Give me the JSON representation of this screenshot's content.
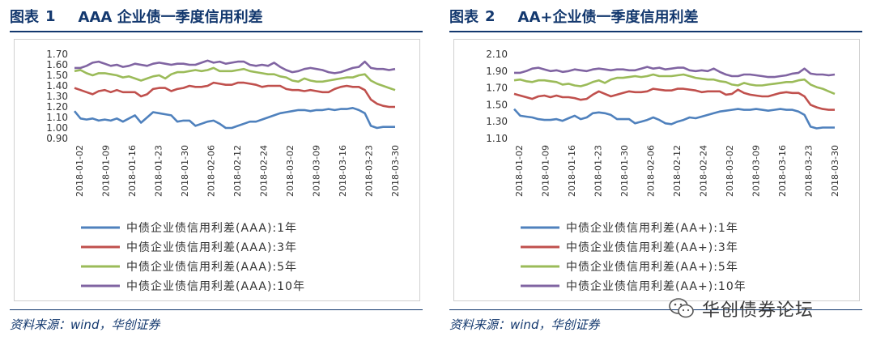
{
  "left": {
    "title_label": "图表",
    "title_num": "1",
    "title_text": "AAA 企业债一季度信用利差",
    "source": "资料来源：wind，华创证券",
    "chart_data": {
      "type": "line",
      "ylim": [
        0.9,
        1.7
      ],
      "yticks": [
        "1.70",
        "1.60",
        "1.50",
        "1.40",
        "1.30",
        "1.20",
        "1.10",
        "1.00",
        "0.90"
      ],
      "grid": "none",
      "legend_position": "bottom",
      "xticks": [
        "2018-01-02",
        "2018-01-09",
        "2018-01-16",
        "2018-01-23",
        "2018-01-30",
        "2018-02-06",
        "2018-02-12",
        "2018-02-24",
        "2018-03-02",
        "2018-03-09",
        "2018-03-16",
        "2018-03-23",
        "2018-03-30"
      ],
      "series": [
        {
          "name": "中债企业债信用利差(AAA):1年",
          "color": "#4f81bd",
          "values": [
            1.16,
            1.09,
            1.08,
            1.09,
            1.07,
            1.08,
            1.07,
            1.09,
            1.06,
            1.09,
            1.12,
            1.05,
            1.1,
            1.15,
            1.14,
            1.13,
            1.12,
            1.06,
            1.07,
            1.07,
            1.02,
            1.04,
            1.06,
            1.07,
            1.04,
            1.0,
            1.0,
            1.02,
            1.04,
            1.06,
            1.06,
            1.08,
            1.1,
            1.12,
            1.14,
            1.15,
            1.16,
            1.17,
            1.17,
            1.16,
            1.17,
            1.17,
            1.18,
            1.17,
            1.18,
            1.18,
            1.19,
            1.17,
            1.14,
            1.02,
            1.0,
            1.01,
            1.01,
            1.01
          ]
        },
        {
          "name": "中债企业债信用利差(AAA):3年",
          "color": "#c0504d",
          "values": [
            1.38,
            1.36,
            1.34,
            1.32,
            1.35,
            1.36,
            1.34,
            1.36,
            1.34,
            1.34,
            1.34,
            1.3,
            1.32,
            1.37,
            1.38,
            1.38,
            1.35,
            1.37,
            1.38,
            1.4,
            1.39,
            1.39,
            1.4,
            1.43,
            1.42,
            1.41,
            1.41,
            1.43,
            1.43,
            1.42,
            1.41,
            1.39,
            1.4,
            1.4,
            1.4,
            1.37,
            1.36,
            1.36,
            1.35,
            1.36,
            1.35,
            1.34,
            1.34,
            1.37,
            1.39,
            1.4,
            1.39,
            1.39,
            1.36,
            1.27,
            1.23,
            1.21,
            1.2,
            1.2
          ]
        },
        {
          "name": "中债企业债信用利差(AAA):5年",
          "color": "#9bbb59",
          "values": [
            1.54,
            1.55,
            1.52,
            1.5,
            1.52,
            1.52,
            1.51,
            1.5,
            1.48,
            1.49,
            1.47,
            1.45,
            1.47,
            1.49,
            1.5,
            1.47,
            1.51,
            1.53,
            1.53,
            1.54,
            1.55,
            1.54,
            1.55,
            1.57,
            1.54,
            1.54,
            1.54,
            1.55,
            1.56,
            1.54,
            1.53,
            1.52,
            1.51,
            1.51,
            1.49,
            1.48,
            1.45,
            1.44,
            1.47,
            1.45,
            1.44,
            1.44,
            1.45,
            1.46,
            1.47,
            1.48,
            1.48,
            1.5,
            1.51,
            1.45,
            1.42,
            1.4,
            1.38,
            1.36
          ]
        },
        {
          "name": "中债企业债信用利差(AAA):10年",
          "color": "#8064a2",
          "values": [
            1.57,
            1.57,
            1.59,
            1.62,
            1.63,
            1.61,
            1.59,
            1.6,
            1.58,
            1.59,
            1.61,
            1.6,
            1.59,
            1.61,
            1.62,
            1.61,
            1.6,
            1.61,
            1.61,
            1.6,
            1.6,
            1.62,
            1.64,
            1.62,
            1.63,
            1.61,
            1.62,
            1.63,
            1.63,
            1.6,
            1.59,
            1.6,
            1.59,
            1.62,
            1.58,
            1.55,
            1.53,
            1.54,
            1.56,
            1.57,
            1.56,
            1.55,
            1.53,
            1.52,
            1.53,
            1.55,
            1.57,
            1.58,
            1.63,
            1.57,
            1.56,
            1.56,
            1.55,
            1.56
          ]
        }
      ]
    }
  },
  "right": {
    "title_label": "图表",
    "title_num": "2",
    "title_text": "AA+企业债一季度信用利差",
    "source": "资料来源：wind，华创证券",
    "chart_data": {
      "type": "line",
      "ylim": [
        1.1,
        2.1
      ],
      "yticks": [
        "2.10",
        "1.90",
        "1.70",
        "1.50",
        "1.30",
        "1.10"
      ],
      "grid": "none",
      "legend_position": "bottom",
      "xticks": [
        "2018-01-02",
        "2018-01-09",
        "2018-01-16",
        "2018-01-23",
        "2018-01-30",
        "2018-02-06",
        "2018-02-12",
        "2018-02-24",
        "2018-03-02",
        "2018-03-09",
        "2018-03-16",
        "2018-03-23",
        "2018-03-30"
      ],
      "series": [
        {
          "name": "中债企业债信用利差(AA+):1年",
          "color": "#4f81bd",
          "values": [
            1.45,
            1.37,
            1.36,
            1.35,
            1.33,
            1.32,
            1.32,
            1.33,
            1.31,
            1.34,
            1.37,
            1.33,
            1.35,
            1.4,
            1.41,
            1.4,
            1.38,
            1.33,
            1.33,
            1.33,
            1.28,
            1.3,
            1.32,
            1.35,
            1.32,
            1.28,
            1.27,
            1.3,
            1.32,
            1.35,
            1.34,
            1.36,
            1.38,
            1.4,
            1.42,
            1.43,
            1.44,
            1.45,
            1.44,
            1.44,
            1.45,
            1.44,
            1.43,
            1.44,
            1.45,
            1.44,
            1.44,
            1.42,
            1.38,
            1.24,
            1.22,
            1.23,
            1.23,
            1.23
          ]
        },
        {
          "name": "中债企业债信用利差(AA+):3年",
          "color": "#c0504d",
          "values": [
            1.63,
            1.61,
            1.59,
            1.57,
            1.6,
            1.61,
            1.59,
            1.61,
            1.59,
            1.59,
            1.58,
            1.56,
            1.57,
            1.62,
            1.66,
            1.63,
            1.6,
            1.62,
            1.64,
            1.66,
            1.65,
            1.65,
            1.66,
            1.69,
            1.68,
            1.67,
            1.67,
            1.69,
            1.69,
            1.68,
            1.67,
            1.65,
            1.66,
            1.66,
            1.66,
            1.62,
            1.63,
            1.68,
            1.64,
            1.62,
            1.61,
            1.6,
            1.6,
            1.62,
            1.64,
            1.65,
            1.64,
            1.64,
            1.6,
            1.5,
            1.47,
            1.45,
            1.44,
            1.44
          ]
        },
        {
          "name": "中债企业债信用利差(AA+):5年",
          "color": "#9bbb59",
          "values": [
            1.79,
            1.8,
            1.78,
            1.77,
            1.79,
            1.79,
            1.78,
            1.77,
            1.74,
            1.75,
            1.73,
            1.72,
            1.74,
            1.77,
            1.79,
            1.76,
            1.8,
            1.82,
            1.82,
            1.83,
            1.84,
            1.83,
            1.84,
            1.86,
            1.84,
            1.84,
            1.84,
            1.85,
            1.86,
            1.84,
            1.82,
            1.81,
            1.8,
            1.8,
            1.78,
            1.77,
            1.74,
            1.73,
            1.76,
            1.74,
            1.73,
            1.73,
            1.74,
            1.75,
            1.76,
            1.77,
            1.77,
            1.79,
            1.8,
            1.74,
            1.71,
            1.69,
            1.66,
            1.63
          ]
        },
        {
          "name": "中债企业债信用利差(AA+):10年",
          "color": "#8064a2",
          "values": [
            1.88,
            1.88,
            1.9,
            1.93,
            1.94,
            1.92,
            1.9,
            1.91,
            1.89,
            1.9,
            1.92,
            1.91,
            1.9,
            1.92,
            1.93,
            1.92,
            1.91,
            1.92,
            1.92,
            1.91,
            1.91,
            1.93,
            1.95,
            1.93,
            1.94,
            1.92,
            1.93,
            1.94,
            1.94,
            1.91,
            1.9,
            1.91,
            1.9,
            1.93,
            1.89,
            1.86,
            1.84,
            1.84,
            1.86,
            1.86,
            1.85,
            1.84,
            1.83,
            1.83,
            1.84,
            1.85,
            1.87,
            1.88,
            1.93,
            1.87,
            1.86,
            1.86,
            1.85,
            1.86
          ]
        }
      ]
    }
  },
  "watermark": {
    "text": "华创债券论坛",
    "icon": "wechat-icon"
  }
}
